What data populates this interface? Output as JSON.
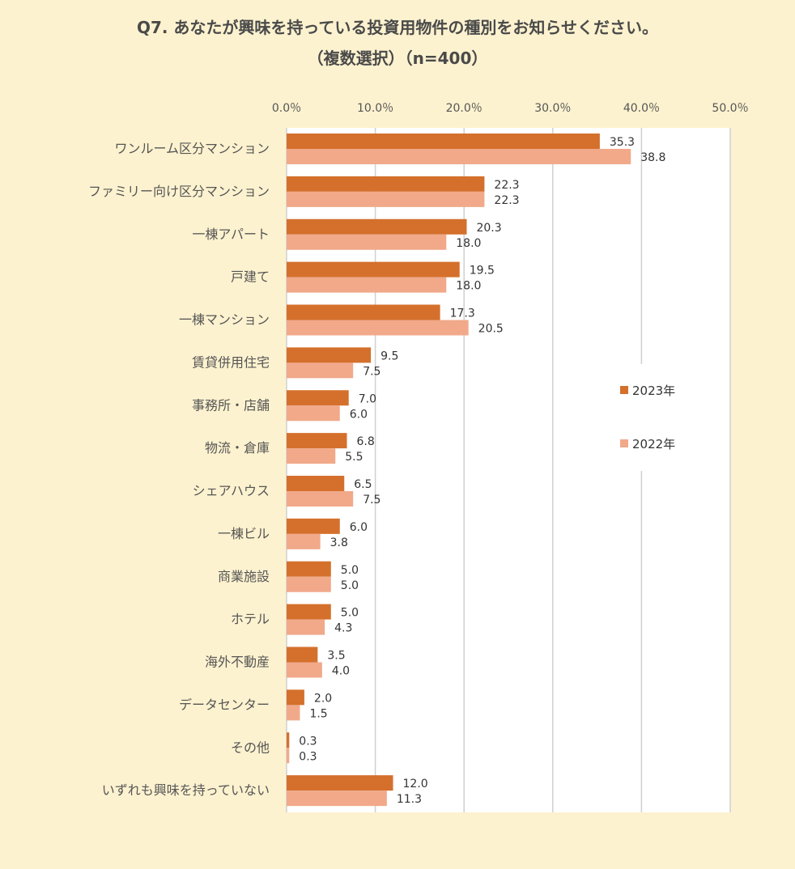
{
  "title_line1": "Q7. あなたが興味を持っている投資用物件の種別をお知らせください。",
  "title_line2": "（複数選択）（n=400）",
  "chart_data": {
    "type": "bar",
    "orientation": "horizontal",
    "title": "Q7. あなたが興味を持っている投資用物件の種別をお知らせください。（複数選択）（n=400）",
    "categories": [
      "ワンルーム区分マンション",
      "ファミリー向け区分マンション",
      "一棟アパート",
      "戸建て",
      "一棟マンション",
      "賃貸併用住宅",
      "事務所・店舗",
      "物流・倉庫",
      "シェアハウス",
      "一棟ビル",
      "商業施設",
      "ホテル",
      "海外不動産",
      "データセンター",
      "その他",
      "いずれも興味を持っていない"
    ],
    "series": [
      {
        "name": "2023年",
        "color": "#d4702c",
        "values": [
          35.3,
          22.3,
          20.3,
          19.5,
          17.3,
          9.5,
          7.0,
          6.8,
          6.5,
          6.0,
          5.0,
          5.0,
          3.5,
          2.0,
          0.3,
          12.0
        ],
        "labels": [
          "35.3",
          "22.3",
          "20.3",
          "19.5",
          "17.3",
          "9.5",
          "7.0",
          "6.8",
          "6.5",
          "6.0",
          "5.0",
          "5.0",
          "3.5",
          "2.0",
          "0.3",
          "12.0"
        ]
      },
      {
        "name": "2022年",
        "color": "#f1a98a",
        "values": [
          38.8,
          22.3,
          18.0,
          18.0,
          20.5,
          7.5,
          6.0,
          5.5,
          7.5,
          3.8,
          5.0,
          4.3,
          4.0,
          1.5,
          0.3,
          11.3
        ],
        "labels": [
          "38.8",
          "22.3",
          "18.0",
          "18.0",
          "20.5",
          "7.5",
          "6.0",
          "5.5",
          "7.5",
          "3.8",
          "5.0",
          "4.3",
          "4.0",
          "1.5",
          "0.3",
          "11.3"
        ]
      }
    ],
    "xlim": [
      0,
      50
    ],
    "xticks": [
      0,
      10,
      20,
      30,
      40,
      50
    ],
    "xtick_labels": [
      "0.0％",
      "10.0％",
      "20.0％",
      "30.0％",
      "40.0％",
      "50.0％"
    ],
    "xlabel": "",
    "ylabel": "",
    "grid": true,
    "legend_position": "right"
  }
}
